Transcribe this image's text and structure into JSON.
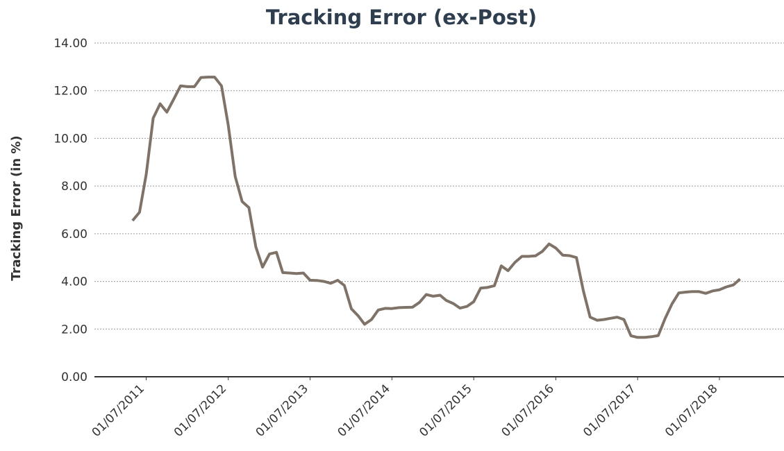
{
  "chart_data": {
    "type": "line",
    "title": "Tracking Error (ex-Post)",
    "y_label": "Tracking Error (in %)",
    "x": [
      "2011-05-01",
      "2011-06-01",
      "2011-07-01",
      "2011-08-01",
      "2011-09-01",
      "2011-10-01",
      "2011-11-01",
      "2011-12-01",
      "2012-01-01",
      "2012-02-01",
      "2012-03-01",
      "2012-04-01",
      "2012-05-01",
      "2012-06-01",
      "2012-07-01",
      "2012-08-01",
      "2012-09-01",
      "2012-10-01",
      "2012-11-01",
      "2012-12-01",
      "2013-01-01",
      "2013-02-01",
      "2013-03-01",
      "2013-04-01",
      "2013-05-01",
      "2013-06-01",
      "2013-07-01",
      "2013-08-01",
      "2013-09-01",
      "2013-10-01",
      "2013-11-01",
      "2013-12-01",
      "2014-01-01",
      "2014-02-01",
      "2014-03-01",
      "2014-04-01",
      "2014-05-01",
      "2014-06-01",
      "2014-07-01",
      "2014-08-01",
      "2014-09-01",
      "2014-10-01",
      "2014-11-01",
      "2014-12-01",
      "2015-01-01",
      "2015-02-01",
      "2015-03-01",
      "2015-04-01",
      "2015-05-01",
      "2015-06-01",
      "2015-07-01",
      "2015-08-01",
      "2015-09-01",
      "2015-10-01",
      "2015-11-01",
      "2015-12-01",
      "2016-01-01",
      "2016-02-01",
      "2016-03-01",
      "2016-04-01",
      "2016-05-01",
      "2016-06-01",
      "2016-07-01",
      "2016-08-01",
      "2016-09-01",
      "2016-10-01",
      "2016-11-01",
      "2016-12-01",
      "2017-01-01",
      "2017-02-01",
      "2017-03-01",
      "2017-04-01",
      "2017-05-01",
      "2017-06-01",
      "2017-07-01",
      "2017-08-01",
      "2017-09-01",
      "2017-10-01",
      "2017-11-01",
      "2017-12-01",
      "2018-01-01",
      "2018-02-01",
      "2018-03-01",
      "2018-04-01",
      "2018-05-01",
      "2018-06-01",
      "2018-07-01",
      "2018-08-01",
      "2018-09-01",
      "2018-10-01"
    ],
    "series": [
      {
        "name": "Tracking Error",
        "color": "#7f7369",
        "values": [
          6.55,
          6.9,
          8.5,
          10.85,
          11.45,
          11.1,
          11.65,
          12.2,
          12.17,
          12.17,
          12.55,
          12.57,
          12.57,
          12.2,
          10.55,
          8.4,
          7.35,
          7.1,
          5.45,
          4.6,
          5.15,
          5.22,
          4.37,
          4.35,
          4.33,
          4.35,
          4.05,
          4.04,
          4.0,
          3.92,
          4.05,
          3.83,
          2.85,
          2.55,
          2.2,
          2.4,
          2.8,
          2.87,
          2.86,
          2.9,
          2.91,
          2.92,
          3.12,
          3.45,
          3.38,
          3.42,
          3.2,
          3.07,
          2.88,
          2.95,
          3.15,
          3.72,
          3.75,
          3.82,
          4.65,
          4.45,
          4.8,
          5.05,
          5.05,
          5.07,
          5.25,
          5.57,
          5.4,
          5.1,
          5.08,
          5.0,
          3.6,
          2.5,
          2.37,
          2.4,
          2.45,
          2.5,
          2.4,
          1.72,
          1.65,
          1.65,
          1.68,
          1.73,
          2.45,
          3.05,
          3.52,
          3.55,
          3.57,
          3.57,
          3.5,
          3.6,
          3.65,
          3.77,
          3.85,
          4.1
        ]
      }
    ],
    "xlim": [
      "2010-11-12",
      "2019-04-15"
    ],
    "xticks": [
      {
        "value": "2011-07-01",
        "label": "01/07/2011"
      },
      {
        "value": "2012-07-01",
        "label": "01/07/2012"
      },
      {
        "value": "2013-07-01",
        "label": "01/07/2013"
      },
      {
        "value": "2014-07-01",
        "label": "01/07/2014"
      },
      {
        "value": "2015-07-01",
        "label": "01/07/2015"
      },
      {
        "value": "2016-07-01",
        "label": "01/07/2016"
      },
      {
        "value": "2017-07-01",
        "label": "01/07/2017"
      },
      {
        "value": "2018-07-01",
        "label": "01/07/2018"
      }
    ],
    "ylim": [
      0,
      14
    ],
    "yticks": [
      {
        "value": 0,
        "label": "0.00"
      },
      {
        "value": 2,
        "label": "2.00"
      },
      {
        "value": 4,
        "label": "4.00"
      },
      {
        "value": 6,
        "label": "6.00"
      },
      {
        "value": 8,
        "label": "8.00"
      },
      {
        "value": 10,
        "label": "10.00"
      },
      {
        "value": 12,
        "label": "12.00"
      },
      {
        "value": 14,
        "label": "14.00"
      }
    ],
    "grid": true
  }
}
